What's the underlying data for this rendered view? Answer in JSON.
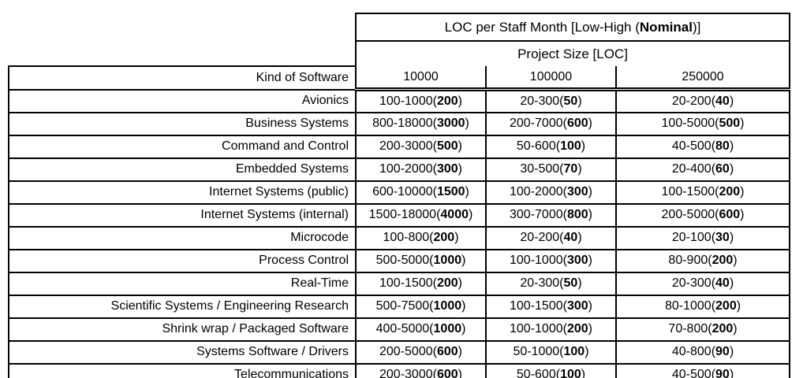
{
  "table": {
    "title": {
      "pre": "LOC per Staff Month [Low-High (",
      "bold": "Nominal",
      "post": ")]"
    },
    "project_size_label": "Project Size [LOC]",
    "kind_of_software_label": "Kind of Software",
    "columns": [
      "10000",
      "100000",
      "250000"
    ],
    "rows": [
      {
        "kind": "Avionics",
        "cells": [
          {
            "range": "100-1000",
            "nominal": "200"
          },
          {
            "range": "20-300",
            "nominal": "50"
          },
          {
            "range": "20-200",
            "nominal": "40"
          }
        ]
      },
      {
        "kind": "Business Systems",
        "cells": [
          {
            "range": "800-18000",
            "nominal": "3000"
          },
          {
            "range": "200-7000",
            "nominal": "600"
          },
          {
            "range": "100-5000",
            "nominal": "500"
          }
        ]
      },
      {
        "kind": "Command and Control",
        "cells": [
          {
            "range": "200-3000",
            "nominal": "500"
          },
          {
            "range": "50-600",
            "nominal": "100"
          },
          {
            "range": "40-500",
            "nominal": "80"
          }
        ]
      },
      {
        "kind": "Embedded Systems",
        "cells": [
          {
            "range": "100-2000",
            "nominal": "300"
          },
          {
            "range": "30-500",
            "nominal": "70"
          },
          {
            "range": "20-400",
            "nominal": "60"
          }
        ]
      },
      {
        "kind": "Internet Systems (public)",
        "cells": [
          {
            "range": "600-10000",
            "nominal": "1500"
          },
          {
            "range": "100-2000",
            "nominal": "300"
          },
          {
            "range": "100-1500",
            "nominal": "200"
          }
        ]
      },
      {
        "kind": "Internet Systems (internal)",
        "cells": [
          {
            "range": "1500-18000",
            "nominal": "4000"
          },
          {
            "range": "300-7000",
            "nominal": "800"
          },
          {
            "range": "200-5000",
            "nominal": "600"
          }
        ]
      },
      {
        "kind": "Microcode",
        "cells": [
          {
            "range": "100-800",
            "nominal": "200"
          },
          {
            "range": "20-200",
            "nominal": "40"
          },
          {
            "range": "20-100",
            "nominal": "30"
          }
        ]
      },
      {
        "kind": "Process Control",
        "cells": [
          {
            "range": "500-5000",
            "nominal": "1000"
          },
          {
            "range": "100-1000",
            "nominal": "300"
          },
          {
            "range": "80-900",
            "nominal": "200"
          }
        ]
      },
      {
        "kind": "Real-Time",
        "cells": [
          {
            "range": "100-1500",
            "nominal": "200"
          },
          {
            "range": "20-300",
            "nominal": "50"
          },
          {
            "range": "20-300",
            "nominal": "40"
          }
        ]
      },
      {
        "kind": "Scientific Systems / Engineering Research",
        "cells": [
          {
            "range": "500-7500",
            "nominal": "1000"
          },
          {
            "range": "100-1500",
            "nominal": "300"
          },
          {
            "range": "80-1000",
            "nominal": "200"
          }
        ]
      },
      {
        "kind": "Shrink wrap / Packaged Software",
        "cells": [
          {
            "range": "400-5000",
            "nominal": "1000"
          },
          {
            "range": "100-1000",
            "nominal": "200"
          },
          {
            "range": "70-800",
            "nominal": "200"
          }
        ]
      },
      {
        "kind": "Systems Software / Drivers",
        "cells": [
          {
            "range": "200-5000",
            "nominal": "600"
          },
          {
            "range": "50-1000",
            "nominal": "100"
          },
          {
            "range": "40-800",
            "nominal": "90"
          }
        ]
      },
      {
        "kind": "Telecommunications",
        "cells": [
          {
            "range": "200-3000",
            "nominal": "600"
          },
          {
            "range": "50-600",
            "nominal": "100"
          },
          {
            "range": "40-500",
            "nominal": "90"
          }
        ]
      }
    ],
    "colors": {
      "border": "#000000",
      "text": "#000000",
      "background": "#ffffff"
    }
  }
}
